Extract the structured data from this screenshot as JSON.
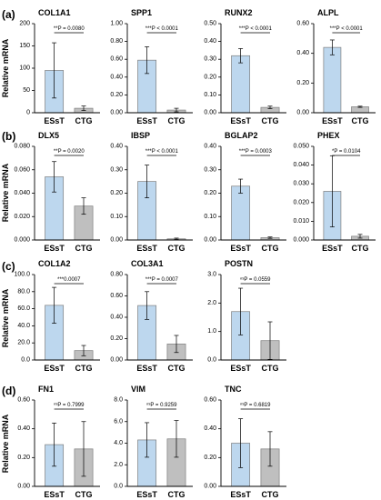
{
  "ylabel": "Relative mRNA",
  "colors": {
    "esst": "#bdd7ee",
    "ctg": "#bfbfbf",
    "bar_edge": "#7f7f7f",
    "axis": "#000000"
  },
  "chart_data": [
    {
      "panel": "(a)",
      "type": "bar",
      "title": "COL1A1",
      "categories": [
        "ESsT",
        "CTG"
      ],
      "values": [
        95,
        10
      ],
      "errors": [
        62,
        5
      ],
      "ylim": [
        0,
        200
      ],
      "yticks": [
        "0",
        "50",
        "100",
        "150",
        "200"
      ],
      "annotation": "**P = 0.0080"
    },
    {
      "panel": "",
      "type": "bar",
      "title": "SPP1",
      "categories": [
        "ESsT",
        "CTG"
      ],
      "values": [
        0.59,
        0.03
      ],
      "errors": [
        0.15,
        0.02
      ],
      "ylim": [
        0,
        1.0
      ],
      "yticks": [
        "0.00",
        "0.20",
        "0.40",
        "0.60",
        "0.80",
        "1.00"
      ],
      "annotation": "***P < 0.0001"
    },
    {
      "panel": "",
      "type": "bar",
      "title": "RUNX2",
      "categories": [
        "ESsT",
        "CTG"
      ],
      "values": [
        0.32,
        0.03
      ],
      "errors": [
        0.04,
        0.007
      ],
      "ylim": [
        0,
        0.5
      ],
      "yticks": [
        "0.00",
        "0.10",
        "0.20",
        "0.30",
        "0.40",
        "0.50"
      ],
      "annotation": "***P < 0.0001"
    },
    {
      "panel": "",
      "type": "bar",
      "title": "ALPL",
      "categories": [
        "ESsT",
        "CTG"
      ],
      "values": [
        0.44,
        0.04
      ],
      "errors": [
        0.05,
        0.004
      ],
      "ylim": [
        0,
        0.6
      ],
      "yticks": [
        "0.00",
        "0.20",
        "0.40",
        "0.60"
      ],
      "annotation": "***P < 0.0001"
    },
    {
      "panel": "(b)",
      "type": "bar",
      "title": "DLX5",
      "categories": [
        "ESsT",
        "CTG"
      ],
      "values": [
        0.054,
        0.029
      ],
      "errors": [
        0.013,
        0.007
      ],
      "ylim": [
        0,
        0.08
      ],
      "yticks": [
        "0.000",
        "0.020",
        "0.040",
        "0.060",
        "0.080"
      ],
      "annotation": "**P = 0.0020"
    },
    {
      "panel": "",
      "type": "bar",
      "title": "IBSP",
      "categories": [
        "ESsT",
        "CTG"
      ],
      "values": [
        0.25,
        0.005
      ],
      "errors": [
        0.07,
        0.003
      ],
      "ylim": [
        0,
        0.4
      ],
      "yticks": [
        "0.00",
        "0.10",
        "0.20",
        "0.30",
        "0.40"
      ],
      "annotation": "***P < 0.0001"
    },
    {
      "panel": "",
      "type": "bar",
      "title": "BGLAP2",
      "categories": [
        "ESsT",
        "CTG"
      ],
      "values": [
        0.23,
        0.01
      ],
      "errors": [
        0.03,
        0.003
      ],
      "ylim": [
        0,
        0.4
      ],
      "yticks": [
        "0.00",
        "0.10",
        "0.20",
        "0.30",
        "0.40"
      ],
      "annotation": "***P = 0.0003"
    },
    {
      "panel": "",
      "type": "bar",
      "title": "PHEX",
      "categories": [
        "ESsT",
        "CTG"
      ],
      "values": [
        0.026,
        0.002
      ],
      "errors": [
        0.019,
        0.001
      ],
      "ylim": [
        0,
        0.05
      ],
      "yticks": [
        "0.000",
        "0.010",
        "0.020",
        "0.030",
        "0.040",
        "0.050"
      ],
      "annotation": "*P = 0.0104"
    },
    {
      "panel": "(c)",
      "type": "bar",
      "title": "COL1A2",
      "categories": [
        "ESsT",
        "CTG"
      ],
      "values": [
        64,
        11
      ],
      "errors": [
        21,
        6
      ],
      "ylim": [
        0,
        100
      ],
      "yticks": [
        "0.0",
        "20.0",
        "40.0",
        "60.0",
        "80.0",
        "100.0"
      ],
      "annotation": "***0.0007"
    },
    {
      "panel": "",
      "type": "bar",
      "title": "COL3A1",
      "categories": [
        "ESsT",
        "CTG"
      ],
      "values": [
        0.51,
        0.15
      ],
      "errors": [
        0.13,
        0.08
      ],
      "ylim": [
        0,
        0.8
      ],
      "yticks": [
        "0.00",
        "0.20",
        "0.40",
        "0.60",
        "0.80"
      ],
      "annotation": "***P = 0.0007"
    },
    {
      "panel": "",
      "type": "bar",
      "title": "POSTN",
      "categories": [
        "ESsT",
        "CTG"
      ],
      "values": [
        1.7,
        0.68
      ],
      "errors": [
        0.82,
        0.66
      ],
      "ylim": [
        0,
        3.0
      ],
      "yticks": [
        "0.0",
        "1.0",
        "2.0",
        "3.0"
      ],
      "annotation": "ⁿˢP = 0.0559"
    },
    {
      "panel": "(d)",
      "type": "bar",
      "title": "FN1",
      "categories": [
        "ESsT",
        "CTG"
      ],
      "values": [
        0.29,
        0.26
      ],
      "errors": [
        0.15,
        0.19
      ],
      "ylim": [
        0,
        0.6
      ],
      "yticks": [
        "0.00",
        "0.20",
        "0.40",
        "0.60"
      ],
      "annotation": "ⁿˢP = 0.7999"
    },
    {
      "panel": "",
      "type": "bar",
      "title": "VIM",
      "categories": [
        "ESsT",
        "CTG"
      ],
      "values": [
        4.3,
        4.4
      ],
      "errors": [
        1.6,
        1.7
      ],
      "ylim": [
        0,
        8.0
      ],
      "yticks": [
        "0.0",
        "2.0",
        "4.0",
        "6.0",
        "8.0"
      ],
      "annotation": "ⁿˢP = 0.9259"
    },
    {
      "panel": "",
      "type": "bar",
      "title": "TNC",
      "categories": [
        "ESsT",
        "CTG"
      ],
      "values": [
        0.3,
        0.26
      ],
      "errors": [
        0.17,
        0.12
      ],
      "ylim": [
        0,
        0.6
      ],
      "yticks": [
        "0.00",
        "0.20",
        "0.40",
        "0.60"
      ],
      "annotation": "ⁿˢP = 0.6819"
    }
  ]
}
